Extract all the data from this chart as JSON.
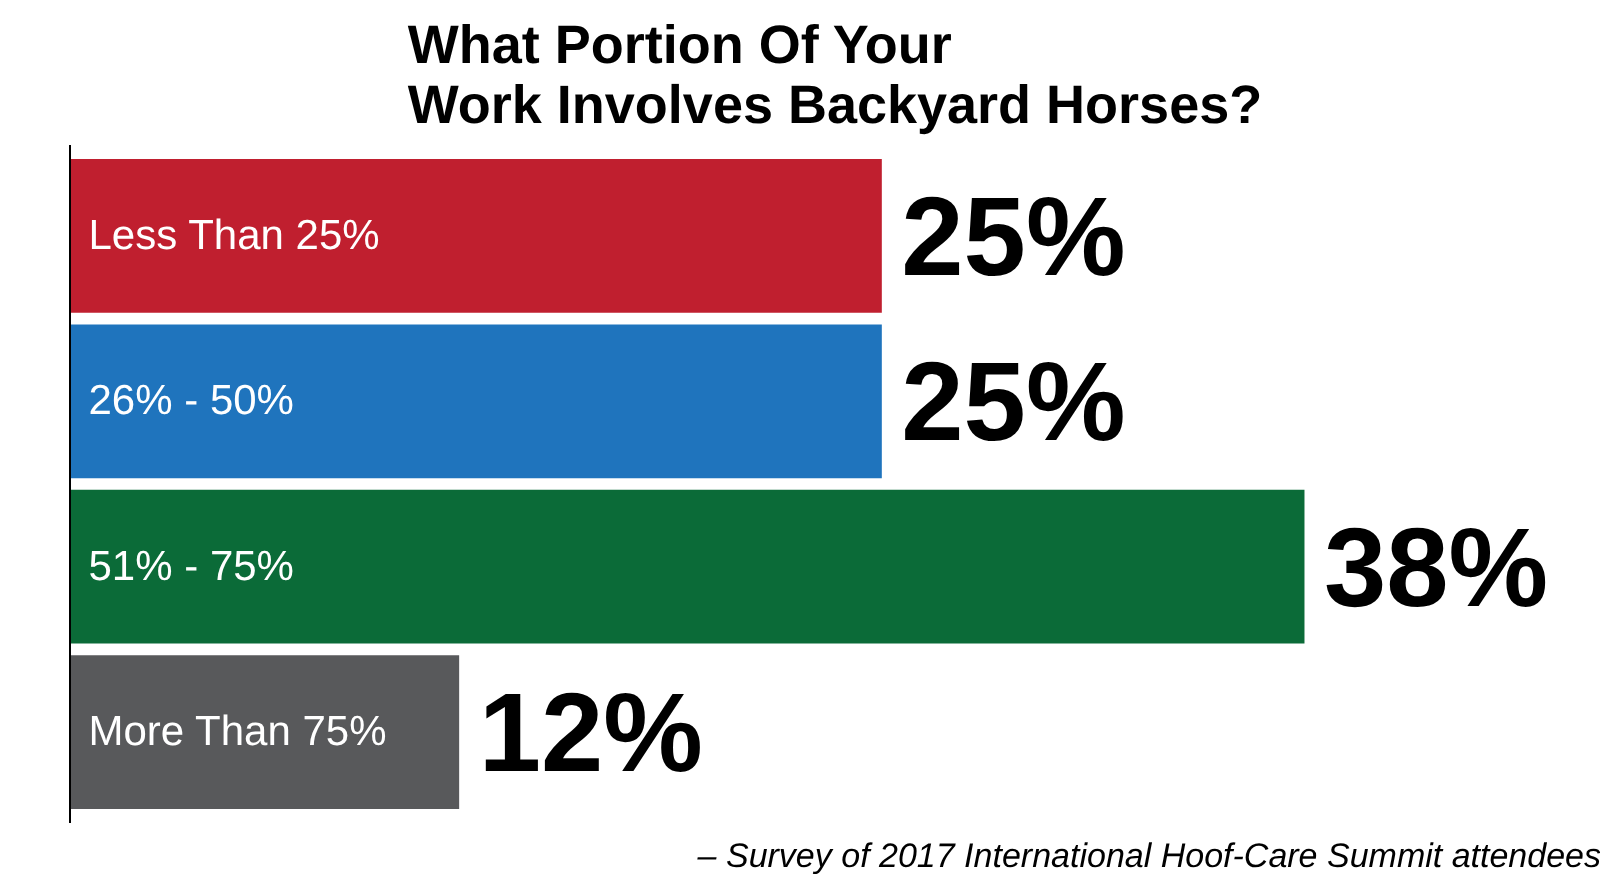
{
  "chart_data": {
    "type": "bar",
    "orientation": "horizontal",
    "title": "What Portion Of Your\nWork Involves Backyard Horses?",
    "categories": [
      "Less Than 25%",
      "26% - 50%",
      "51% - 75%",
      "More Than 75%"
    ],
    "values": [
      25,
      25,
      38,
      12
    ],
    "colors": [
      "#c01f2f",
      "#1f74bd",
      "#0b6b38",
      "#58595b"
    ],
    "value_labels": [
      "25%",
      "25%",
      "38%",
      "12%"
    ],
    "grid": false,
    "annotations": [
      "– Survey of 2017 International Hoof-Care Summit attendees"
    ]
  }
}
